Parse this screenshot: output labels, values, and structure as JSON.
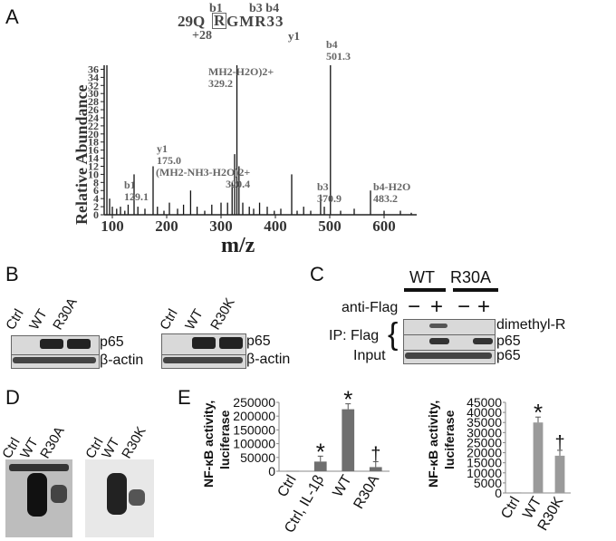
{
  "panels": {
    "A": "A",
    "B": "B",
    "C": "C",
    "D": "D",
    "E": "E"
  },
  "panelA": {
    "peptide_left": "29Q",
    "peptide_R": "R",
    "peptide_mid": "GMR33",
    "b1": "b1",
    "b3b4": "b3 b4",
    "mod": "+28",
    "y1_top": "y1",
    "ylabel": "Relative Abundance",
    "xlabel": "m/z",
    "peak_labels": [
      {
        "name": "b1",
        "text": "b1\n129.1"
      },
      {
        "name": "y1",
        "text": "y1\n175.0"
      },
      {
        "name": "mh-loss",
        "text": "(MH2-NH3-H2O)2+\n320.4"
      },
      {
        "name": "mh-h2o",
        "text": "MH2-H2O)2+\n329.2"
      },
      {
        "name": "b3",
        "text": "b3\n370.9"
      },
      {
        "name": "b4-h2o",
        "text": "b4-H2O\n483.2"
      },
      {
        "name": "b4",
        "text": "b4\n501.3"
      }
    ]
  },
  "chart_data": [
    {
      "type": "bar",
      "title": "",
      "xlabel": "m/z",
      "ylabel": "Relative Abundance",
      "xlim": [
        85,
        660
      ],
      "ylim": [
        0,
        37
      ],
      "xticks": [
        100,
        200,
        300,
        400,
        500,
        600
      ],
      "yticks": [
        0,
        2,
        4,
        6,
        8,
        10,
        12,
        14,
        16,
        18,
        20,
        22,
        24,
        26,
        28,
        30,
        32,
        34,
        36
      ],
      "x": [
        90,
        95,
        100,
        108,
        115,
        123,
        129.1,
        140,
        147,
        160,
        175.0,
        183,
        195,
        205,
        220,
        231,
        244,
        256,
        270,
        283,
        300,
        312,
        320.4,
        325,
        329.2,
        333,
        340,
        352,
        360,
        370.9,
        385,
        398,
        410,
        430,
        440,
        452,
        465,
        483.2,
        490,
        501.3,
        520,
        545,
        575,
        600,
        630,
        650
      ],
      "values": [
        37,
        4,
        2,
        1.5,
        2,
        1,
        2.5,
        10,
        2,
        1.5,
        12,
        2,
        1,
        3,
        1.5,
        2.5,
        6,
        2,
        1,
        2.5,
        3,
        3,
        8,
        15,
        37,
        12,
        3,
        2,
        1.5,
        3,
        2,
        1,
        1.5,
        10,
        1,
        2,
        1,
        5,
        2,
        37,
        1,
        1.5,
        6,
        1,
        1,
        0.5
      ]
    },
    {
      "type": "bar",
      "title": "",
      "ylabel": "NF-κB activity, luciferase",
      "categories": [
        "Ctrl",
        "Ctrl, IL-1β",
        "WT",
        "R30A"
      ],
      "values": [
        1000,
        35000,
        225000,
        15000
      ],
      "ylim": [
        0,
        250000
      ],
      "yticks": [
        "0",
        "50000",
        "100000",
        "150000",
        "200000",
        "250000"
      ],
      "annotations": [
        "",
        "*",
        "*",
        "†"
      ]
    },
    {
      "type": "bar",
      "title": "",
      "ylabel": "NF-κB activity, luciferase",
      "categories": [
        "Ctrl",
        "WT",
        "R30K"
      ],
      "values": [
        300,
        35000,
        18500
      ],
      "ylim": [
        0,
        45000
      ],
      "yticks": [
        "0",
        "5000",
        "10000",
        "15000",
        "20000",
        "25000",
        "30000",
        "35000",
        "40000",
        "45000"
      ],
      "annotations": [
        "",
        "*",
        "†"
      ]
    }
  ],
  "panelB": {
    "left_lanes": [
      "Ctrl",
      "WT",
      "R30A"
    ],
    "right_lanes": [
      "Ctrl",
      "WT",
      "R30K"
    ],
    "p65": "p65",
    "actin": "β-actin"
  },
  "panelC": {
    "wt": "WT",
    "r30a": "R30A",
    "anti_flag": "anti-Flag",
    "signs": [
      "−",
      "+",
      "−",
      "+"
    ],
    "ip_flag": "IP: Flag",
    "input": "Input",
    "dimethyl": "dimethyl-R",
    "p65a": "p65",
    "p65b": "p65"
  },
  "panelD": {
    "left_lanes": [
      "Ctrl",
      "WT",
      "R30A"
    ],
    "right_lanes": [
      "Ctrl",
      "WT",
      "R30K"
    ]
  },
  "panelE": {
    "ylabel_l1": "NF-κB activity,",
    "ylabel_l2": "luciferase"
  }
}
